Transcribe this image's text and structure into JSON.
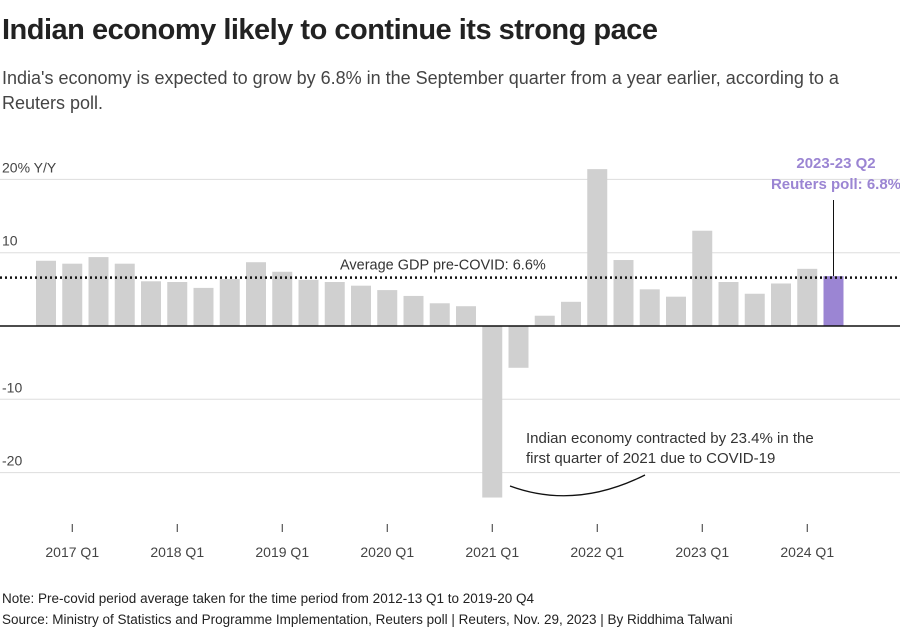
{
  "title": "Indian economy likely to continue its strong pace",
  "subtitle": "India's economy is expected to grow by 6.8% in the September quarter from a year earlier, according to a Reuters poll.",
  "note": "Note: Pre-covid period average taken for the time period from 2012-13 Q1 to 2019-20 Q4",
  "source": "Source: Ministry of Statistics and Programme Implementation, Reuters poll | Reuters, Nov. 29, 2023 | By Riddhima Talwani",
  "chart_data": {
    "type": "bar",
    "ylabel": "",
    "ylim": [
      -26,
      22
    ],
    "y_ticks": [
      {
        "value": 20,
        "label": "20% Y/Y"
      },
      {
        "value": 10,
        "label": "10"
      },
      {
        "value": -10,
        "label": "-10"
      },
      {
        "value": -20,
        "label": "-20"
      }
    ],
    "x_tick_labels": [
      "2017 Q1",
      "2018 Q1",
      "2019 Q1",
      "2020 Q1",
      "2021 Q1",
      "2022 Q1",
      "2023 Q1",
      "2024 Q1"
    ],
    "categories": [
      "2016 Q4",
      "2017 Q1",
      "2017 Q2",
      "2017 Q3",
      "2017 Q4",
      "2018 Q1",
      "2018 Q2",
      "2018 Q3",
      "2018 Q4",
      "2019 Q1",
      "2019 Q2",
      "2019 Q3",
      "2019 Q4",
      "2020 Q1",
      "2020 Q2",
      "2020 Q3",
      "2020 Q4",
      "2021 Q1",
      "2021 Q2",
      "2021 Q3",
      "2021 Q4",
      "2022 Q1",
      "2022 Q2",
      "2022 Q3",
      "2022 Q4",
      "2023 Q1",
      "2023 Q2",
      "2023 Q3",
      "2023 Q4",
      "2024 Q1",
      "2024 Q2"
    ],
    "values": [
      8.9,
      8.5,
      9.4,
      8.5,
      6.1,
      6.0,
      5.2,
      6.4,
      8.7,
      7.4,
      6.3,
      6.0,
      5.5,
      4.9,
      4.1,
      3.1,
      2.7,
      -23.4,
      -5.7,
      1.4,
      3.3,
      21.4,
      9.0,
      5.0,
      4.0,
      13.0,
      6.0,
      4.4,
      5.8,
      7.8,
      6.8
    ],
    "highlight_index": 30,
    "bar_color": "#d0d0d0",
    "highlight_color": "#9b85d3",
    "reference_line": {
      "value": 6.6,
      "label": "Average GDP pre-COVID: 6.6%",
      "style": "dotted"
    },
    "annotations": [
      {
        "lines": [
          "2023-23 Q2",
          "Reuters poll: 6.8%"
        ],
        "color": "#9b85d3"
      },
      {
        "lines": [
          "Indian economy contracted by 23.4% in the",
          "first quarter of 2021 due to COVID-19"
        ]
      }
    ],
    "grid": true
  }
}
